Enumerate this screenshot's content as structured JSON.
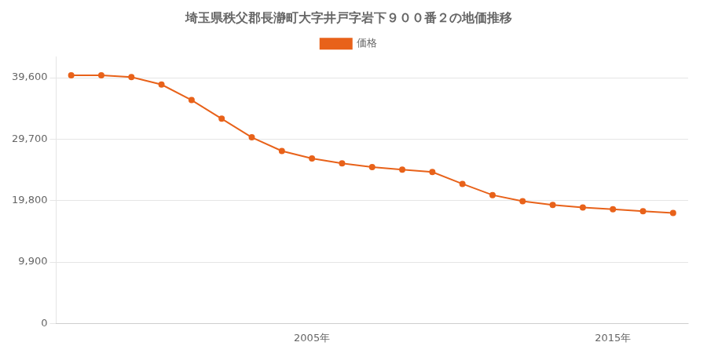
{
  "chart_data": {
    "type": "line",
    "title": "埼玉県秩父郡長瀞町大字井戸字岩下９００番２の地価推移",
    "x": [
      1997,
      1998,
      1999,
      2000,
      2001,
      2002,
      2003,
      2004,
      2005,
      2006,
      2007,
      2008,
      2009,
      2010,
      2011,
      2012,
      2013,
      2014,
      2015,
      2016,
      2017
    ],
    "series": [
      {
        "name": "価格",
        "color": "#e8621a",
        "marker": "circle",
        "values": [
          40000,
          40000,
          39700,
          38500,
          36000,
          33000,
          30000,
          27800,
          26600,
          25800,
          25200,
          24800,
          24400,
          22500,
          20700,
          19700,
          19100,
          18700,
          18400,
          18100,
          17800
        ]
      }
    ],
    "xlim": [
      1996.5,
      2017.5
    ],
    "xticks": [
      {
        "value": 2005,
        "label": "2005年"
      },
      {
        "value": 2015,
        "label": "2015年"
      }
    ],
    "ylim": [
      0,
      43000
    ],
    "yticks": [
      0,
      {
        "value": 9900,
        "label": "9,900"
      },
      {
        "value": 19800,
        "label": "19,800"
      },
      {
        "value": 29700,
        "label": "29,700"
      },
      {
        "value": 39600,
        "label": "39,600"
      }
    ],
    "grid": "y",
    "legend": "top"
  }
}
